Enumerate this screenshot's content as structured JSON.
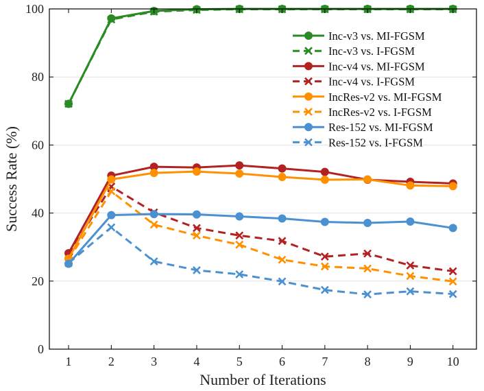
{
  "chart_data": {
    "type": "line",
    "title": "",
    "xlabel": "Number of Iterations",
    "ylabel": "Success Rate (%)",
    "x": [
      1,
      2,
      3,
      4,
      5,
      6,
      7,
      8,
      9,
      10
    ],
    "xlim": [
      0.55,
      10.55
    ],
    "ylim": [
      0,
      100
    ],
    "xticks": [
      1,
      2,
      3,
      4,
      5,
      6,
      7,
      8,
      9,
      10
    ],
    "yticks": [
      0,
      20,
      40,
      60,
      80,
      100
    ],
    "grid": "horizontal",
    "legend_position": "top-right",
    "series": [
      {
        "name": "Inc-v3 vs. MI-FGSM",
        "color": "#2a8a24",
        "dash": "solid",
        "marker": "circle",
        "values": [
          72.1,
          97.2,
          99.4,
          99.9,
          100.0,
          100.0,
          100.0,
          100.0,
          100.0,
          100.0
        ]
      },
      {
        "name": "Inc-v3 vs. I-FGSM",
        "color": "#2a8a24",
        "dash": "dashed",
        "marker": "x",
        "values": [
          72.1,
          96.9,
          99.2,
          99.7,
          99.9,
          99.9,
          99.9,
          99.9,
          99.9,
          99.9
        ]
      },
      {
        "name": "Inc-v4 vs. MI-FGSM",
        "color": "#b22222",
        "dash": "solid",
        "marker": "circle",
        "values": [
          28.2,
          51.0,
          53.6,
          53.4,
          54.0,
          53.1,
          52.1,
          49.8,
          49.2,
          48.7
        ]
      },
      {
        "name": "Inc-v4 vs. I-FGSM",
        "color": "#b22222",
        "dash": "dashed",
        "marker": "x",
        "values": [
          27.8,
          47.8,
          40.2,
          35.6,
          33.4,
          31.8,
          27.2,
          28.1,
          24.6,
          22.9
        ]
      },
      {
        "name": "IncRes-v2 vs. MI-FGSM",
        "color": "#ff9000",
        "dash": "solid",
        "marker": "circle",
        "values": [
          26.6,
          49.9,
          51.8,
          52.2,
          51.6,
          50.6,
          49.8,
          49.9,
          48.1,
          47.9
        ]
      },
      {
        "name": "IncRes-v2 vs. I-FGSM",
        "color": "#ff9000",
        "dash": "dashed",
        "marker": "x",
        "values": [
          26.3,
          46.4,
          36.6,
          33.4,
          30.7,
          26.3,
          24.3,
          23.7,
          21.5,
          19.9
        ]
      },
      {
        "name": "Res-152 vs. MI-FGSM",
        "color": "#4b91d1",
        "dash": "solid",
        "marker": "circle",
        "values": [
          25.1,
          39.4,
          39.7,
          39.6,
          39.0,
          38.4,
          37.4,
          37.1,
          37.5,
          35.6
        ]
      },
      {
        "name": "Res-152 vs. I-FGSM",
        "color": "#4b91d1",
        "dash": "dashed",
        "marker": "x",
        "values": [
          25.3,
          35.8,
          25.8,
          23.2,
          22.0,
          19.9,
          17.4,
          16.1,
          17.0,
          16.2
        ]
      }
    ]
  }
}
